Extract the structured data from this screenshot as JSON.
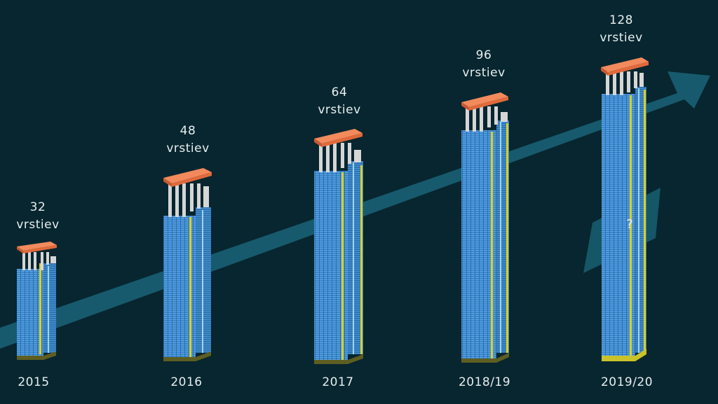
{
  "generations": [
    {
      "layers": "32",
      "unit": "vrstiev",
      "year": "2015"
    },
    {
      "layers": "48",
      "unit": "vrstiev",
      "year": "2016"
    },
    {
      "layers": "64",
      "unit": "vrstiev",
      "year": "2017"
    },
    {
      "layers": "96",
      "unit": "vrstiev",
      "year": "2018/19"
    },
    {
      "layers": "128",
      "unit": "vrstiev",
      "year": "2019/20"
    }
  ],
  "unknown_marker": "?",
  "colors": {
    "background": "#07262f",
    "arrow": "#175a6d",
    "cell_blue": "#3f8fd6",
    "cap": "#e8703f",
    "pillar": "#d6d6d6",
    "accent_yellow": "#d8cf2a"
  }
}
